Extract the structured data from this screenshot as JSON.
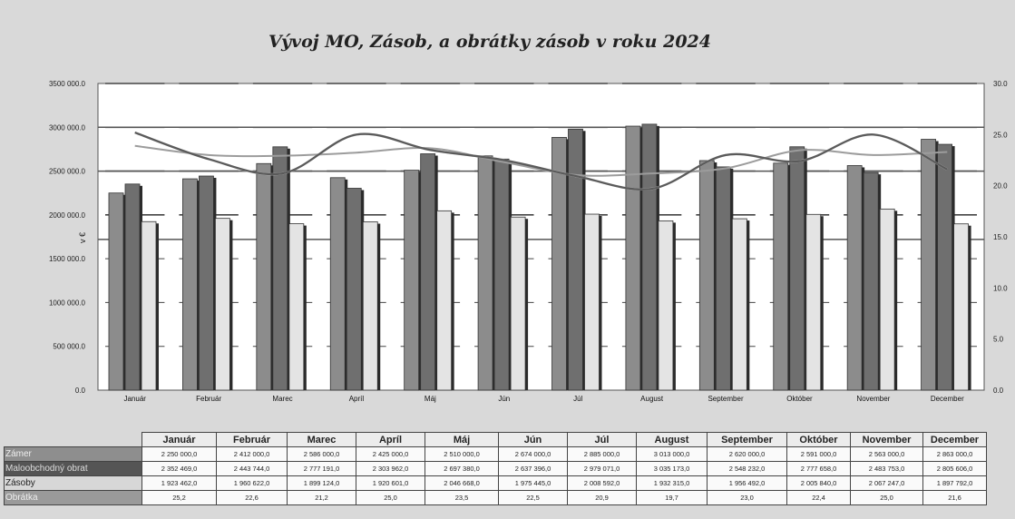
{
  "chart_data": {
    "type": "bar",
    "title": "Vývoj MO, Zásob, a obrátky zásob v roku 2024",
    "ylabel": "v €",
    "ylim": [
      0,
      3500000
    ],
    "y2lim": [
      0,
      30
    ],
    "yticks": [
      "0.0",
      "500 000.0",
      "1000 000.0",
      "1500 000.0",
      "2000 000.0",
      "2500 000.0",
      "3000 000.0",
      "3500 000.0"
    ],
    "y2ticks": [
      "0.0",
      "5.0",
      "10.0",
      "15.0",
      "20.0",
      "25.0",
      "30.0"
    ],
    "categories": [
      "Január",
      "Február",
      "Marec",
      "Apríl",
      "Máj",
      "Jún",
      "Júl",
      "August",
      "September",
      "Október",
      "November",
      "December"
    ],
    "series": [
      {
        "name": "Zámer",
        "values": [
          2250000,
          2412000,
          2586000,
          2425000,
          2510000,
          2674000,
          2885000,
          3013000,
          2620000,
          2591000,
          2563000,
          2863000
        ],
        "display": [
          "2 250 000,0",
          "2 412 000,0",
          "2 586 000,0",
          "2 425 000,0",
          "2 510 000,0",
          "2 674 000,0",
          "2 885 000,0",
          "3 013 000,0",
          "2 620 000,0",
          "2 591 000,0",
          "2 563 000,0",
          "2 863 000,0"
        ]
      },
      {
        "name": "Maloobchodný obrat",
        "values": [
          2352469,
          2443744,
          2777191,
          2303962,
          2697380,
          2637396,
          2979071,
          3035173,
          2548232,
          2777658,
          2483753,
          2805606
        ],
        "display": [
          "2 352 469,0",
          "2 443 744,0",
          "2 777 191,0",
          "2 303 962,0",
          "2 697 380,0",
          "2 637 396,0",
          "2 979 071,0",
          "3 035 173,0",
          "2 548 232,0",
          "2 777 658,0",
          "2 483 753,0",
          "2 805 606,0"
        ]
      },
      {
        "name": "Zásoby",
        "values": [
          1923462,
          1960622,
          1899124,
          1920601,
          2046668,
          1975445,
          2008592,
          1932315,
          1956492,
          2005840,
          2067247,
          1897792
        ],
        "display": [
          "1 923 462,0",
          "1 960 622,0",
          "1 899 124,0",
          "1 920 601,0",
          "2 046 668,0",
          "1 975 445,0",
          "2 008 592,0",
          "1 932 315,0",
          "1 956 492,0",
          "2 005 840,0",
          "2 067 247,0",
          "1 897 792,0"
        ]
      },
      {
        "name": "Obrátka",
        "axis": "right",
        "values": [
          25.2,
          22.6,
          21.2,
          25.0,
          23.5,
          22.5,
          20.9,
          19.7,
          23.0,
          22.4,
          25.0,
          21.6
        ],
        "display": [
          "25,2",
          "22,6",
          "21,2",
          "25,0",
          "23,5",
          "22,5",
          "20,9",
          "19,7",
          "23,0",
          "22,4",
          "25,0",
          "21,6"
        ]
      }
    ],
    "colors": {
      "zamer": "#8c8c8c",
      "obrat": "#6f6f6f",
      "zasoby": "#e4e4e4",
      "line": "#5a5a5a",
      "line2": "#9c9c9c",
      "line3": "#c8c8c8"
    },
    "grid": true
  }
}
